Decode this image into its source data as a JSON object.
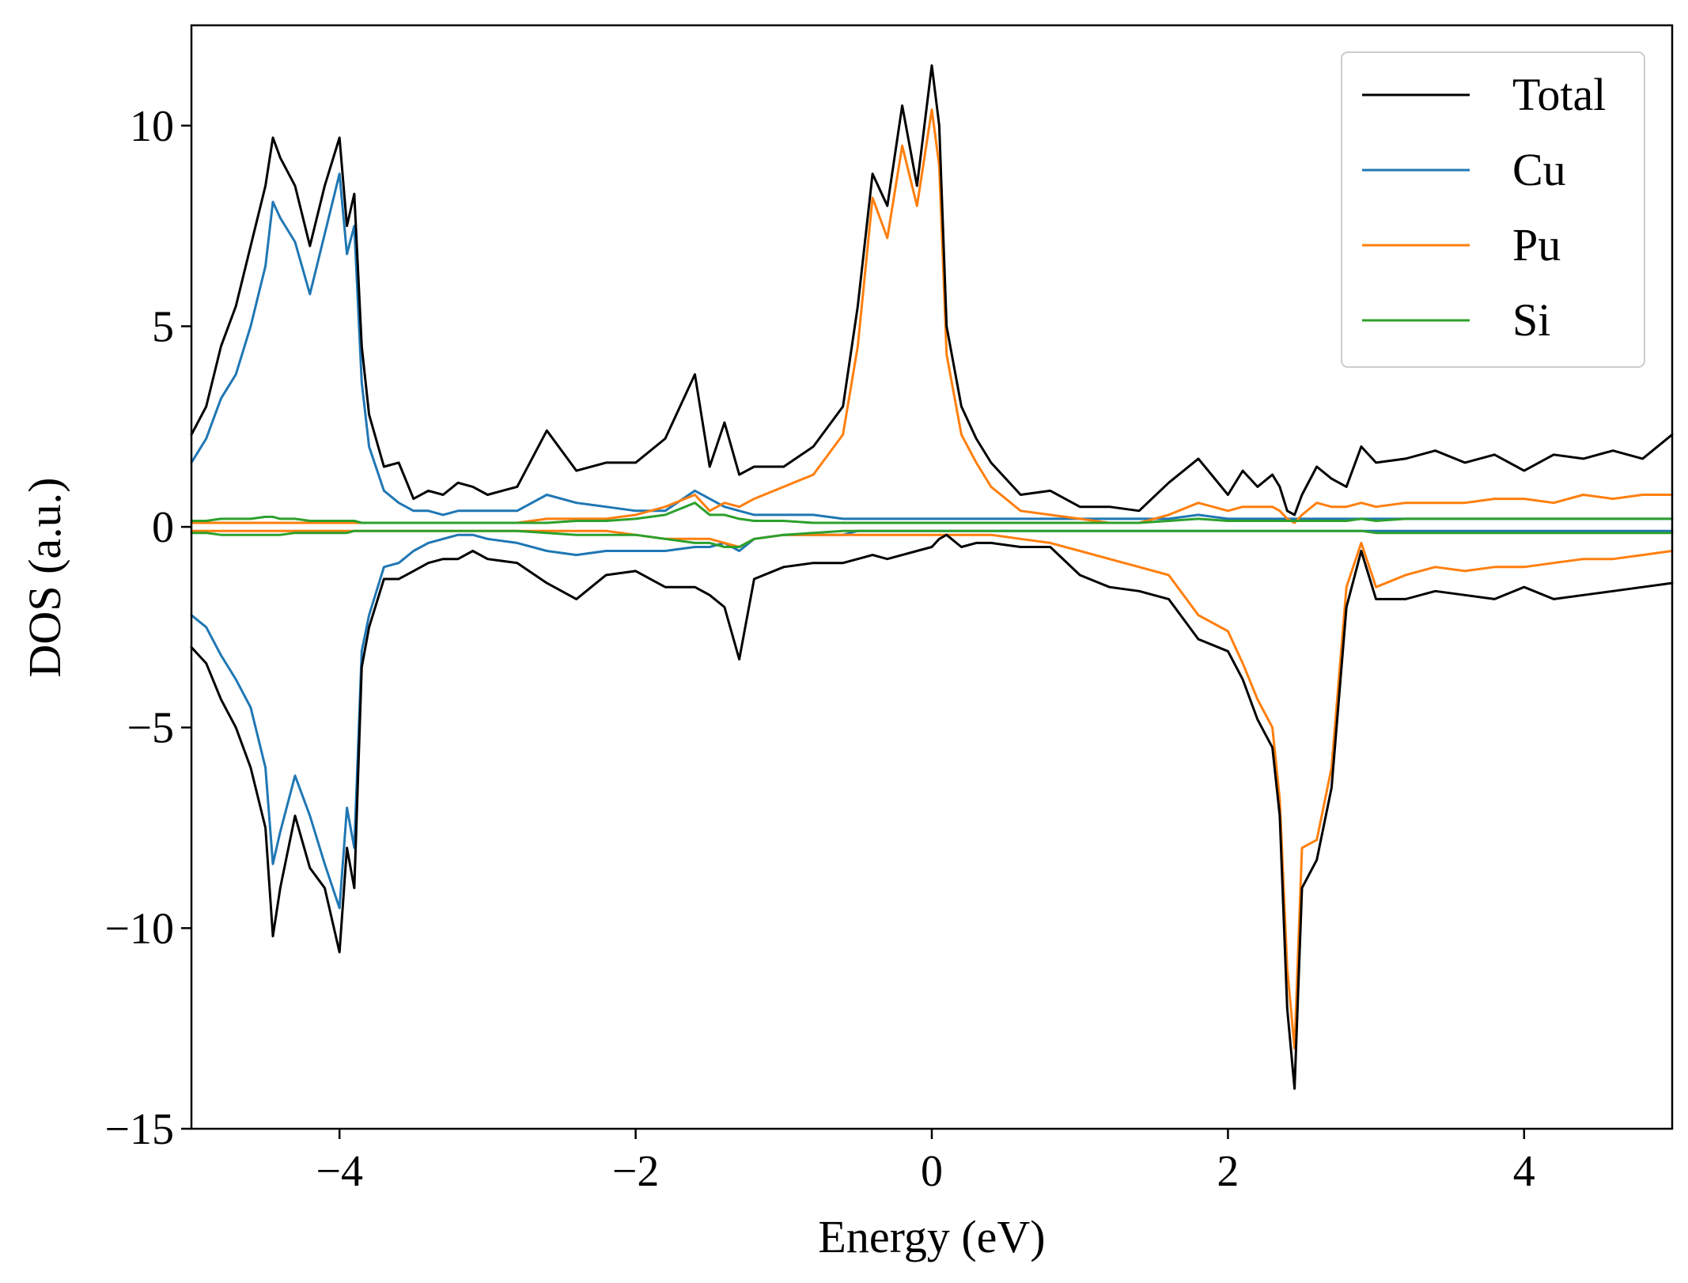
{
  "chart_data": {
    "type": "line",
    "title": "",
    "xlabel": "Energy (eV)",
    "ylabel": "DOS (a.u.)",
    "xlim": [
      -5,
      5
    ],
    "ylim": [
      -15,
      12.5
    ],
    "x_ticks": [
      -4,
      -2,
      0,
      2,
      4
    ],
    "x_tick_labels": [
      "−4",
      "−2",
      "0",
      "2",
      "4"
    ],
    "y_ticks": [
      -15,
      -10,
      -5,
      0,
      5,
      10
    ],
    "y_tick_labels": [
      "−15",
      "−10",
      "−5",
      "0",
      "5",
      "10"
    ],
    "grid": false,
    "legend_position": "top-right",
    "x": [
      -5.0,
      -4.9,
      -4.8,
      -4.7,
      -4.6,
      -4.5,
      -4.45,
      -4.4,
      -4.3,
      -4.2,
      -4.1,
      -4.0,
      -3.95,
      -3.9,
      -3.85,
      -3.8,
      -3.7,
      -3.6,
      -3.5,
      -3.4,
      -3.3,
      -3.2,
      -3.1,
      -3.0,
      -2.8,
      -2.6,
      -2.4,
      -2.2,
      -2.0,
      -1.8,
      -1.6,
      -1.5,
      -1.4,
      -1.3,
      -1.2,
      -1.0,
      -0.8,
      -0.6,
      -0.5,
      -0.4,
      -0.3,
      -0.2,
      -0.1,
      0.0,
      0.05,
      0.1,
      0.2,
      0.3,
      0.4,
      0.6,
      0.8,
      1.0,
      1.2,
      1.4,
      1.6,
      1.8,
      2.0,
      2.1,
      2.2,
      2.3,
      2.35,
      2.4,
      2.45,
      2.5,
      2.6,
      2.7,
      2.8,
      2.9,
      3.0,
      3.2,
      3.4,
      3.6,
      3.8,
      4.0,
      4.2,
      4.4,
      4.6,
      4.8,
      5.0
    ],
    "series": [
      {
        "name": "Total",
        "color": "#000000",
        "up": [
          2.3,
          3.0,
          4.5,
          5.5,
          7.0,
          8.5,
          9.7,
          9.2,
          8.5,
          7.0,
          8.5,
          9.7,
          7.5,
          8.3,
          4.5,
          2.8,
          1.5,
          1.6,
          0.7,
          0.9,
          0.8,
          1.1,
          1.0,
          0.8,
          1.0,
          2.4,
          1.4,
          1.6,
          1.6,
          2.2,
          3.8,
          1.5,
          2.6,
          1.3,
          1.5,
          1.5,
          2.0,
          3.0,
          5.5,
          8.8,
          8.0,
          10.5,
          8.5,
          11.5,
          10.0,
          5.0,
          3.0,
          2.2,
          1.6,
          0.8,
          0.9,
          0.5,
          0.5,
          0.4,
          1.1,
          1.7,
          0.8,
          1.4,
          1.0,
          1.3,
          1.0,
          0.4,
          0.3,
          0.8,
          1.5,
          1.2,
          1.0,
          2.0,
          1.6,
          1.7,
          1.9,
          1.6,
          1.8,
          1.4,
          1.8,
          1.7,
          1.9,
          1.7,
          2.3
        ],
        "down": [
          -3.0,
          -3.4,
          -4.3,
          -5.0,
          -6.0,
          -7.5,
          -10.2,
          -9.0,
          -7.2,
          -8.5,
          -9.0,
          -10.6,
          -8.0,
          -9.0,
          -3.5,
          -2.5,
          -1.3,
          -1.3,
          -1.1,
          -0.9,
          -0.8,
          -0.8,
          -0.6,
          -0.8,
          -0.9,
          -1.4,
          -1.8,
          -1.2,
          -1.1,
          -1.5,
          -1.5,
          -1.7,
          -2.0,
          -3.3,
          -1.3,
          -1.0,
          -0.9,
          -0.9,
          -0.8,
          -0.7,
          -0.8,
          -0.7,
          -0.6,
          -0.5,
          -0.3,
          -0.2,
          -0.5,
          -0.4,
          -0.4,
          -0.5,
          -0.5,
          -1.2,
          -1.5,
          -1.6,
          -1.8,
          -2.8,
          -3.1,
          -3.8,
          -4.8,
          -5.5,
          -7.2,
          -12.0,
          -14.0,
          -9.0,
          -8.3,
          -6.5,
          -2.0,
          -0.6,
          -1.8,
          -1.8,
          -1.6,
          -1.7,
          -1.8,
          -1.5,
          -1.8,
          -1.7,
          -1.6,
          -1.5,
          -1.4
        ]
      },
      {
        "name": "Cu",
        "color": "#1f77b4",
        "up": [
          1.6,
          2.2,
          3.2,
          3.8,
          5.0,
          6.5,
          8.1,
          7.7,
          7.1,
          5.8,
          7.3,
          8.8,
          6.8,
          7.5,
          3.6,
          2.0,
          0.9,
          0.6,
          0.4,
          0.4,
          0.3,
          0.4,
          0.4,
          0.4,
          0.4,
          0.8,
          0.6,
          0.5,
          0.4,
          0.4,
          0.9,
          0.7,
          0.5,
          0.4,
          0.3,
          0.3,
          0.3,
          0.2,
          0.2,
          0.2,
          0.2,
          0.2,
          0.2,
          0.2,
          0.2,
          0.2,
          0.2,
          0.2,
          0.2,
          0.2,
          0.2,
          0.2,
          0.2,
          0.2,
          0.2,
          0.3,
          0.2,
          0.2,
          0.2,
          0.2,
          0.2,
          0.2,
          0.2,
          0.2,
          0.2,
          0.2,
          0.2,
          0.2,
          0.2,
          0.2,
          0.2,
          0.2,
          0.2,
          0.2,
          0.2,
          0.2,
          0.2,
          0.2,
          0.2
        ],
        "down": [
          -2.2,
          -2.5,
          -3.2,
          -3.8,
          -4.5,
          -6.0,
          -8.4,
          -7.6,
          -6.2,
          -7.2,
          -8.4,
          -9.5,
          -7.0,
          -8.0,
          -3.1,
          -2.2,
          -1.0,
          -0.9,
          -0.6,
          -0.4,
          -0.3,
          -0.2,
          -0.2,
          -0.3,
          -0.4,
          -0.6,
          -0.7,
          -0.6,
          -0.6,
          -0.6,
          -0.5,
          -0.5,
          -0.4,
          -0.6,
          -0.3,
          -0.2,
          -0.2,
          -0.2,
          -0.1,
          -0.1,
          -0.1,
          -0.1,
          -0.1,
          -0.1,
          -0.1,
          -0.1,
          -0.1,
          -0.1,
          -0.1,
          -0.1,
          -0.1,
          -0.1,
          -0.1,
          -0.1,
          -0.1,
          -0.1,
          -0.1,
          -0.1,
          -0.1,
          -0.1,
          -0.1,
          -0.1,
          -0.1,
          -0.1,
          -0.1,
          -0.1,
          -0.1,
          -0.1,
          -0.1,
          -0.1,
          -0.1,
          -0.1,
          -0.1,
          -0.1,
          -0.1,
          -0.1,
          -0.1,
          -0.1,
          -0.1
        ]
      },
      {
        "name": "Pu",
        "color": "#ff7f0e",
        "up": [
          0.1,
          0.1,
          0.1,
          0.1,
          0.1,
          0.1,
          0.1,
          0.1,
          0.1,
          0.1,
          0.1,
          0.1,
          0.1,
          0.1,
          0.1,
          0.1,
          0.1,
          0.1,
          0.1,
          0.1,
          0.1,
          0.1,
          0.1,
          0.1,
          0.1,
          0.2,
          0.2,
          0.2,
          0.3,
          0.5,
          0.8,
          0.4,
          0.6,
          0.5,
          0.7,
          1.0,
          1.3,
          2.3,
          4.5,
          8.2,
          7.2,
          9.5,
          8.0,
          10.4,
          9.0,
          4.3,
          2.3,
          1.6,
          1.0,
          0.4,
          0.3,
          0.2,
          0.1,
          0.1,
          0.3,
          0.6,
          0.4,
          0.5,
          0.5,
          0.5,
          0.4,
          0.2,
          0.1,
          0.3,
          0.6,
          0.5,
          0.5,
          0.6,
          0.5,
          0.6,
          0.6,
          0.6,
          0.7,
          0.7,
          0.6,
          0.8,
          0.7,
          0.8,
          0.8
        ],
        "down": [
          -0.1,
          -0.1,
          -0.1,
          -0.1,
          -0.1,
          -0.1,
          -0.1,
          -0.1,
          -0.1,
          -0.1,
          -0.1,
          -0.1,
          -0.1,
          -0.1,
          -0.1,
          -0.1,
          -0.1,
          -0.1,
          -0.1,
          -0.1,
          -0.1,
          -0.1,
          -0.1,
          -0.1,
          -0.1,
          -0.1,
          -0.1,
          -0.1,
          -0.2,
          -0.3,
          -0.3,
          -0.3,
          -0.4,
          -0.5,
          -0.3,
          -0.2,
          -0.2,
          -0.2,
          -0.2,
          -0.2,
          -0.2,
          -0.2,
          -0.2,
          -0.2,
          -0.2,
          -0.2,
          -0.2,
          -0.2,
          -0.2,
          -0.3,
          -0.4,
          -0.6,
          -0.8,
          -1.0,
          -1.2,
          -2.2,
          -2.6,
          -3.4,
          -4.3,
          -5.0,
          -6.8,
          -11.0,
          -13.0,
          -8.0,
          -7.8,
          -6.0,
          -1.5,
          -0.4,
          -1.5,
          -1.2,
          -1.0,
          -1.1,
          -1.0,
          -1.0,
          -0.9,
          -0.8,
          -0.8,
          -0.7,
          -0.6
        ]
      },
      {
        "name": "Si",
        "color": "#2ca02c",
        "up": [
          0.15,
          0.15,
          0.2,
          0.2,
          0.2,
          0.25,
          0.25,
          0.2,
          0.2,
          0.15,
          0.15,
          0.15,
          0.15,
          0.15,
          0.1,
          0.1,
          0.1,
          0.1,
          0.1,
          0.1,
          0.1,
          0.1,
          0.1,
          0.1,
          0.1,
          0.1,
          0.15,
          0.15,
          0.2,
          0.3,
          0.6,
          0.3,
          0.3,
          0.2,
          0.15,
          0.15,
          0.1,
          0.1,
          0.1,
          0.1,
          0.1,
          0.1,
          0.1,
          0.1,
          0.1,
          0.1,
          0.1,
          0.1,
          0.1,
          0.1,
          0.1,
          0.1,
          0.1,
          0.1,
          0.15,
          0.2,
          0.15,
          0.15,
          0.15,
          0.15,
          0.15,
          0.15,
          0.15,
          0.15,
          0.15,
          0.15,
          0.15,
          0.2,
          0.15,
          0.2,
          0.2,
          0.2,
          0.2,
          0.2,
          0.2,
          0.2,
          0.2,
          0.2,
          0.2
        ],
        "down": [
          -0.15,
          -0.15,
          -0.2,
          -0.2,
          -0.2,
          -0.2,
          -0.2,
          -0.2,
          -0.15,
          -0.15,
          -0.15,
          -0.15,
          -0.15,
          -0.1,
          -0.1,
          -0.1,
          -0.1,
          -0.1,
          -0.1,
          -0.1,
          -0.1,
          -0.1,
          -0.1,
          -0.1,
          -0.1,
          -0.15,
          -0.2,
          -0.2,
          -0.2,
          -0.3,
          -0.4,
          -0.4,
          -0.5,
          -0.5,
          -0.3,
          -0.2,
          -0.15,
          -0.1,
          -0.1,
          -0.1,
          -0.1,
          -0.1,
          -0.1,
          -0.1,
          -0.1,
          -0.1,
          -0.1,
          -0.1,
          -0.1,
          -0.1,
          -0.1,
          -0.1,
          -0.1,
          -0.1,
          -0.1,
          -0.1,
          -0.1,
          -0.1,
          -0.1,
          -0.1,
          -0.1,
          -0.1,
          -0.1,
          -0.1,
          -0.1,
          -0.1,
          -0.1,
          -0.1,
          -0.15,
          -0.15,
          -0.15,
          -0.15,
          -0.15,
          -0.15,
          -0.15,
          -0.15,
          -0.15,
          -0.15,
          -0.15
        ]
      }
    ]
  }
}
